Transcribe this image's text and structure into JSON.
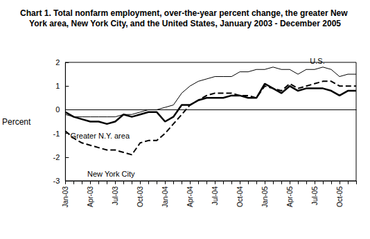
{
  "chart_data": {
    "type": "line",
    "title": "Chart 1. Total nonfarm employment, over-the-year percent change, the greater New York area, New York City, and the United States, January 2003 - December 2005",
    "y_label": "Percent",
    "categories": [
      "Jan-03",
      null,
      null,
      "Apr-03",
      null,
      null,
      "Jul-03",
      null,
      null,
      "Oct-03",
      null,
      null,
      "Jan-04",
      null,
      null,
      "Apr-04",
      null,
      null,
      "Jul-04",
      null,
      null,
      "Oct-04",
      null,
      null,
      "Jan-05",
      null,
      null,
      "Apr-05",
      null,
      null,
      "Jul-05",
      null,
      null,
      "Oct-05",
      null,
      null
    ],
    "series": [
      {
        "name": "U.S.",
        "color": "#000000",
        "line_style": "solid",
        "marker": "none",
        "values": [
          -0.2,
          -0.3,
          -0.3,
          -0.3,
          -0.3,
          -0.3,
          -0.3,
          -0.2,
          -0.2,
          -0.1,
          0.0,
          0.0,
          0.1,
          0.2,
          0.7,
          1.0,
          1.2,
          1.3,
          1.4,
          1.4,
          1.4,
          1.6,
          1.6,
          1.7,
          1.7,
          1.8,
          1.7,
          1.7,
          1.5,
          1.7,
          1.7,
          1.8,
          1.7,
          1.4,
          1.5,
          1.5
        ]
      },
      {
        "name": "Greater N.Y. area",
        "color": "#000000",
        "line_style": "solid",
        "marker": "none",
        "values": [
          -0.1,
          -0.3,
          -0.4,
          -0.5,
          -0.5,
          -0.6,
          -0.5,
          -0.2,
          -0.3,
          -0.2,
          -0.1,
          -0.1,
          -0.5,
          -0.3,
          0.2,
          0.2,
          0.4,
          0.5,
          0.5,
          0.5,
          0.6,
          0.6,
          0.5,
          0.5,
          1.1,
          0.9,
          0.7,
          1.0,
          0.8,
          0.9,
          0.9,
          0.9,
          0.8,
          0.6,
          0.8,
          0.8
        ]
      },
      {
        "name": "New York City",
        "color": "#000000",
        "line_style": "dashed",
        "marker": "none",
        "values": [
          -0.9,
          -1.2,
          -1.4,
          -1.5,
          -1.6,
          -1.7,
          -1.7,
          -1.8,
          -1.9,
          -1.4,
          -1.3,
          -1.3,
          -1.0,
          -0.6,
          -0.2,
          0.2,
          0.4,
          0.6,
          0.7,
          0.7,
          0.7,
          0.6,
          0.6,
          0.5,
          1.0,
          0.9,
          0.8,
          1.1,
          0.9,
          1.0,
          1.1,
          1.2,
          1.2,
          1.0,
          1.0,
          1.0
        ]
      }
    ],
    "ylim": [
      -3,
      2
    ],
    "yticks": [
      -3,
      -2,
      -1,
      0,
      1,
      2
    ],
    "grid": false
  }
}
